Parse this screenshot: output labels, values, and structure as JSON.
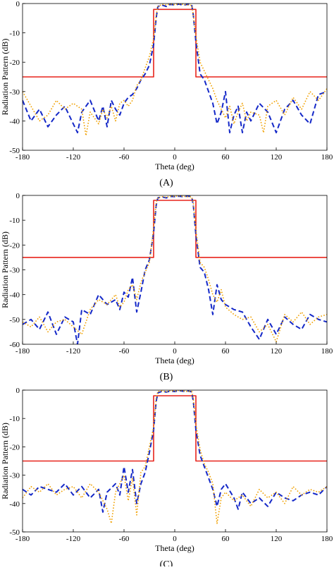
{
  "colors": {
    "mask": "#e8241c",
    "series_dash": "#1428c8",
    "series_dot": "#f0a000"
  },
  "chart_data": [
    {
      "type": "line",
      "panel_label": "(A)",
      "xlabel": "Theta (deg)",
      "ylabel": "Radiation Pattern (dB)",
      "xlim": [
        -180,
        180
      ],
      "ylim": [
        -50,
        0
      ],
      "xticks": [
        "-180",
        "-120",
        "-60",
        "0",
        "60",
        "120",
        "180"
      ],
      "yticks": [
        "0",
        "-10",
        "-20",
        "-30",
        "-40",
        "-50"
      ],
      "series": [
        {
          "style": "solid",
          "color": "#e8241c",
          "x": [
            -180,
            -25,
            -25,
            25,
            25,
            180
          ],
          "y": [
            -25,
            -25,
            -2,
            -2,
            -25,
            -25
          ]
        },
        {
          "style": "dash",
          "color": "#1428c8",
          "x": [
            -180,
            -170,
            -160,
            -150,
            -140,
            -130,
            -120,
            -115,
            -110,
            -100,
            -90,
            -85,
            -80,
            -75,
            -70,
            -65,
            -60,
            -55,
            -50,
            -45,
            -40,
            -35,
            -30,
            -25,
            -22,
            -20,
            -15,
            -10,
            -5,
            0,
            5,
            10,
            15,
            20,
            22,
            25,
            30,
            35,
            40,
            45,
            50,
            55,
            60,
            65,
            70,
            75,
            80,
            85,
            90,
            100,
            110,
            120,
            130,
            140,
            150,
            160,
            170,
            180
          ],
          "y": [
            -33,
            -40,
            -36,
            -42,
            -38,
            -35,
            -41,
            -44,
            -37,
            -33,
            -40,
            -35,
            -42,
            -33,
            -36,
            -38,
            -34,
            -32,
            -31,
            -29,
            -26,
            -24,
            -21,
            -14,
            -5,
            -1,
            -0.5,
            -1,
            -0.3,
            -0.5,
            -0.2,
            -0.6,
            -0.3,
            -0.4,
            -4,
            -13,
            -24,
            -26,
            -30,
            -34,
            -41,
            -37,
            -30,
            -44,
            -38,
            -35,
            -44,
            -37,
            -40,
            -34,
            -37,
            -44,
            -36,
            -33,
            -38,
            -41,
            -31,
            -30
          ]
        },
        {
          "style": "dot",
          "color": "#f0a000",
          "x": [
            -180,
            -170,
            -160,
            -150,
            -140,
            -130,
            -120,
            -110,
            -105,
            -100,
            -90,
            -85,
            -80,
            -75,
            -70,
            -65,
            -60,
            -55,
            -50,
            -45,
            -40,
            -35,
            -30,
            -25,
            -22,
            -20,
            -15,
            -10,
            -5,
            0,
            5,
            10,
            15,
            20,
            22,
            25,
            30,
            35,
            40,
            45,
            50,
            55,
            60,
            65,
            70,
            75,
            80,
            85,
            90,
            100,
            105,
            110,
            120,
            130,
            140,
            150,
            160,
            170,
            180
          ],
          "y": [
            -30,
            -35,
            -40,
            -38,
            -33,
            -36,
            -34,
            -36,
            -45,
            -37,
            -41,
            -36,
            -39,
            -35,
            -40,
            -34,
            -33,
            -35,
            -33,
            -28,
            -26,
            -22,
            -18,
            -12,
            -4,
            -1,
            -0.3,
            -0.5,
            -0.2,
            -0.4,
            -0.1,
            -0.3,
            -0.5,
            -0.6,
            -4,
            -11,
            -20,
            -23,
            -26,
            -29,
            -33,
            -36,
            -39,
            -35,
            -41,
            -37,
            -34,
            -40,
            -37,
            -38,
            -44,
            -35,
            -33,
            -38,
            -32,
            -36,
            -30,
            -33,
            -29
          ]
        }
      ]
    },
    {
      "type": "line",
      "panel_label": "(B)",
      "xlabel": "Theta (deg)",
      "ylabel": "Radiation Pattern (dB)",
      "xlim": [
        -180,
        180
      ],
      "ylim": [
        -60,
        0
      ],
      "xticks": [
        "-180",
        "-120",
        "-60",
        "0",
        "60",
        "120",
        "180"
      ],
      "yticks": [
        "0",
        "-10",
        "-20",
        "-30",
        "-40",
        "-50",
        "-60"
      ],
      "series": [
        {
          "style": "solid",
          "color": "#e8241c",
          "x": [
            -180,
            -25,
            -25,
            25,
            25,
            180
          ],
          "y": [
            -25,
            -25,
            -2,
            -2,
            -25,
            -25
          ]
        },
        {
          "style": "dash",
          "color": "#1428c8",
          "x": [
            -180,
            -170,
            -160,
            -150,
            -140,
            -130,
            -120,
            -115,
            -110,
            -100,
            -90,
            -80,
            -70,
            -65,
            -60,
            -55,
            -50,
            -45,
            -40,
            -35,
            -30,
            -25,
            -22,
            -20,
            -15,
            -10,
            -5,
            0,
            5,
            10,
            15,
            20,
            22,
            25,
            30,
            35,
            40,
            45,
            50,
            55,
            60,
            70,
            80,
            90,
            100,
            110,
            120,
            130,
            140,
            150,
            160,
            170,
            180
          ],
          "y": [
            -52,
            -50,
            -54,
            -47,
            -56,
            -49,
            -51,
            -60,
            -46,
            -48,
            -40,
            -44,
            -42,
            -46,
            -39,
            -41,
            -33,
            -47,
            -39,
            -30,
            -26,
            -15,
            -4,
            -1,
            -0.6,
            -1,
            -0.4,
            -0.5,
            -0.3,
            -0.5,
            -0.3,
            -0.4,
            -4,
            -16,
            -29,
            -31,
            -38,
            -48,
            -36,
            -42,
            -44,
            -46,
            -47,
            -53,
            -58,
            -50,
            -56,
            -49,
            -52,
            -54,
            -48,
            -50,
            -51
          ]
        },
        {
          "style": "dot",
          "color": "#f0a000",
          "x": [
            -180,
            -170,
            -160,
            -150,
            -140,
            -130,
            -120,
            -110,
            -100,
            -90,
            -80,
            -70,
            -65,
            -60,
            -55,
            -50,
            -45,
            -40,
            -35,
            -30,
            -25,
            -22,
            -20,
            -15,
            -10,
            -5,
            0,
            5,
            10,
            15,
            20,
            22,
            25,
            30,
            35,
            40,
            45,
            50,
            55,
            60,
            70,
            80,
            90,
            100,
            110,
            120,
            130,
            140,
            150,
            160,
            170,
            180
          ],
          "y": [
            -51,
            -53,
            -49,
            -55,
            -51,
            -50,
            -53,
            -56,
            -46,
            -42,
            -44,
            -40,
            -45,
            -43,
            -38,
            -36,
            -42,
            -35,
            -31,
            -27,
            -13,
            -3,
            -0.8,
            -0.5,
            -0.7,
            -0.3,
            -0.4,
            -0.2,
            -0.4,
            -0.5,
            -0.6,
            -3,
            -14,
            -27,
            -29,
            -34,
            -40,
            -43,
            -38,
            -45,
            -48,
            -50,
            -49,
            -55,
            -52,
            -59,
            -48,
            -51,
            -47,
            -52,
            -49,
            -48
          ]
        }
      ]
    },
    {
      "type": "line",
      "panel_label": "(C)",
      "xlabel": "Theta (deg)",
      "ylabel": "Radiation Pattern (dB)",
      "xlim": [
        -180,
        180
      ],
      "ylim": [
        -50,
        0
      ],
      "xticks": [
        "-180",
        "-120",
        "-60",
        "0",
        "60",
        "120",
        "180"
      ],
      "yticks": [
        "0",
        "-10",
        "-20",
        "-30",
        "-40",
        "-50"
      ],
      "series": [
        {
          "style": "solid",
          "color": "#e8241c",
          "x": [
            -180,
            -25,
            -25,
            25,
            25,
            180
          ],
          "y": [
            -25,
            -25,
            -2,
            -2,
            -25,
            -25
          ]
        },
        {
          "style": "dash",
          "color": "#1428c8",
          "x": [
            -180,
            -170,
            -160,
            -150,
            -140,
            -130,
            -120,
            -110,
            -100,
            -90,
            -85,
            -80,
            -70,
            -65,
            -60,
            -55,
            -50,
            -45,
            -40,
            -35,
            -30,
            -25,
            -22,
            -20,
            -15,
            -10,
            -5,
            0,
            5,
            10,
            15,
            20,
            22,
            25,
            30,
            35,
            40,
            45,
            50,
            55,
            60,
            70,
            75,
            80,
            90,
            100,
            110,
            120,
            130,
            140,
            150,
            160,
            170,
            180
          ],
          "y": [
            -35,
            -37,
            -34,
            -35,
            -36,
            -33,
            -37,
            -34,
            -38,
            -35,
            -43,
            -36,
            -33,
            -37,
            -27,
            -36,
            -28,
            -40,
            -33,
            -29,
            -22,
            -14,
            -4,
            -1,
            -0.4,
            -0.7,
            -0.3,
            -0.5,
            -0.2,
            -0.4,
            -0.3,
            -0.6,
            -4,
            -14,
            -23,
            -27,
            -31,
            -35,
            -41,
            -35,
            -33,
            -38,
            -42,
            -36,
            -40,
            -38,
            -41,
            -36,
            -38,
            -39,
            -37,
            -36,
            -37,
            -34
          ]
        },
        {
          "style": "dot",
          "color": "#f0a000",
          "x": [
            -180,
            -170,
            -160,
            -150,
            -140,
            -130,
            -120,
            -110,
            -100,
            -90,
            -80,
            -75,
            -70,
            -60,
            -55,
            -50,
            -45,
            -40,
            -35,
            -30,
            -25,
            -22,
            -20,
            -15,
            -10,
            -5,
            0,
            5,
            10,
            15,
            20,
            22,
            25,
            30,
            35,
            40,
            45,
            50,
            55,
            60,
            70,
            80,
            90,
            100,
            110,
            120,
            130,
            140,
            150,
            160,
            170,
            180
          ],
          "y": [
            -38,
            -34,
            -36,
            -33,
            -37,
            -35,
            -34,
            -38,
            -33,
            -36,
            -42,
            -47,
            -36,
            -30,
            -39,
            -31,
            -44,
            -29,
            -27,
            -20,
            -13,
            -3,
            -0.5,
            -0.3,
            -0.6,
            -0.2,
            -0.4,
            -0.1,
            -0.3,
            -0.5,
            -0.4,
            -3,
            -12,
            -21,
            -26,
            -29,
            -33,
            -47,
            -38,
            -36,
            -39,
            -37,
            -41,
            -35,
            -38,
            -36,
            -40,
            -34,
            -37,
            -35,
            -36,
            -34
          ]
        }
      ]
    }
  ]
}
